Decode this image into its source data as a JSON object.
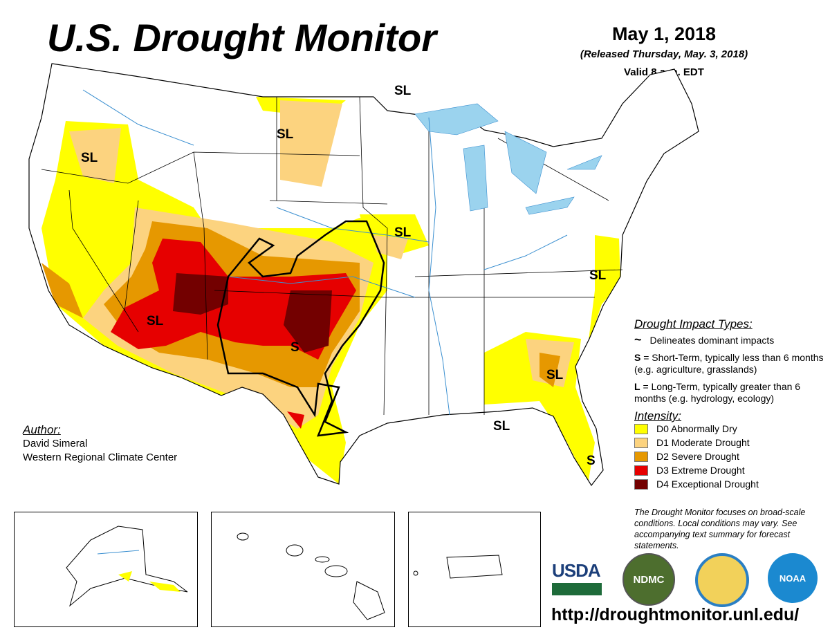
{
  "header": {
    "title": "U.S. Drought Monitor",
    "date": "May 1, 2018",
    "released": "(Released Thursday, May. 3, 2018)",
    "valid": "Valid 8 a.m. EDT"
  },
  "map_labels": [
    "SL",
    "SL",
    "SL",
    "SL",
    "SL",
    "SL",
    "SL",
    "SL",
    "S",
    "S"
  ],
  "author": {
    "heading": "Author:",
    "name": "David Simeral",
    "org": "Western Regional Climate Center"
  },
  "legend": {
    "impact_heading": "Drought Impact Types:",
    "delineates": "Delineates dominant impacts",
    "s_key": "S",
    "s_text": " = Short-Term, typically less than 6 months (e.g. agriculture, grasslands)",
    "l_key": "L",
    "l_text": " = Long-Term, typically greater than 6 months (e.g. hydrology, ecology)",
    "intensity_heading": "Intensity:",
    "levels": [
      {
        "label": "D0 Abnormally Dry",
        "color": "#ffff00"
      },
      {
        "label": "D1 Moderate Drought",
        "color": "#fcd37f"
      },
      {
        "label": "D2 Severe Drought",
        "color": "#e69800"
      },
      {
        "label": "D3 Extreme Drought",
        "color": "#e60000"
      },
      {
        "label": "D4 Exceptional Drought",
        "color": "#730000"
      }
    ]
  },
  "note": "The Drought Monitor focuses on broad-scale conditions. Local conditions may vary. See accompanying text summary for forecast statements.",
  "logos": {
    "usda": "USDA",
    "ndmc": "NDMC",
    "noaa": "NOAA"
  },
  "url": "http://droughtmonitor.unl.edu/"
}
